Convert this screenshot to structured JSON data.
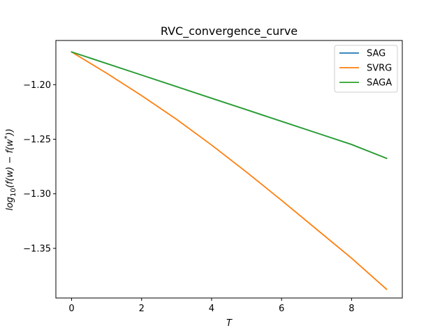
{
  "chart_data": {
    "type": "line",
    "title": "RVC_convergence_curve",
    "xlabel": "T",
    "ylabel": "log10(f(w) − f(w*))",
    "xlim": [
      -0.45,
      9.45
    ],
    "ylim": [
      -1.3955,
      -1.1595
    ],
    "xticks": [
      0,
      2,
      4,
      6,
      8
    ],
    "yticks": [
      -1.2,
      -1.25,
      -1.3,
      -1.35
    ],
    "ytick_labels": [
      "−1.20",
      "−1.25",
      "−1.30",
      "−1.35"
    ],
    "legend_position": "top-right",
    "grid": false,
    "x": [
      0,
      1,
      2,
      3,
      4,
      5,
      6,
      7,
      8,
      9
    ],
    "series": [
      {
        "name": "SAG",
        "color": "#1f77b4",
        "values": [
          -1.17,
          -1.1806,
          -1.1912,
          -1.2018,
          -1.2124,
          -1.223,
          -1.2336,
          -1.2442,
          -1.2548,
          -1.2675
        ]
      },
      {
        "name": "SVRG",
        "color": "#ff7f0e",
        "values": [
          -1.17,
          -1.1895,
          -1.21,
          -1.2318,
          -1.2553,
          -1.2802,
          -1.306,
          -1.3325,
          -1.359,
          -1.3875
        ]
      },
      {
        "name": "SAGA",
        "color": "#2ca02c",
        "values": [
          -1.17,
          -1.1806,
          -1.1912,
          -1.2018,
          -1.2124,
          -1.223,
          -1.2336,
          -1.2442,
          -1.2548,
          -1.2675
        ]
      }
    ]
  }
}
